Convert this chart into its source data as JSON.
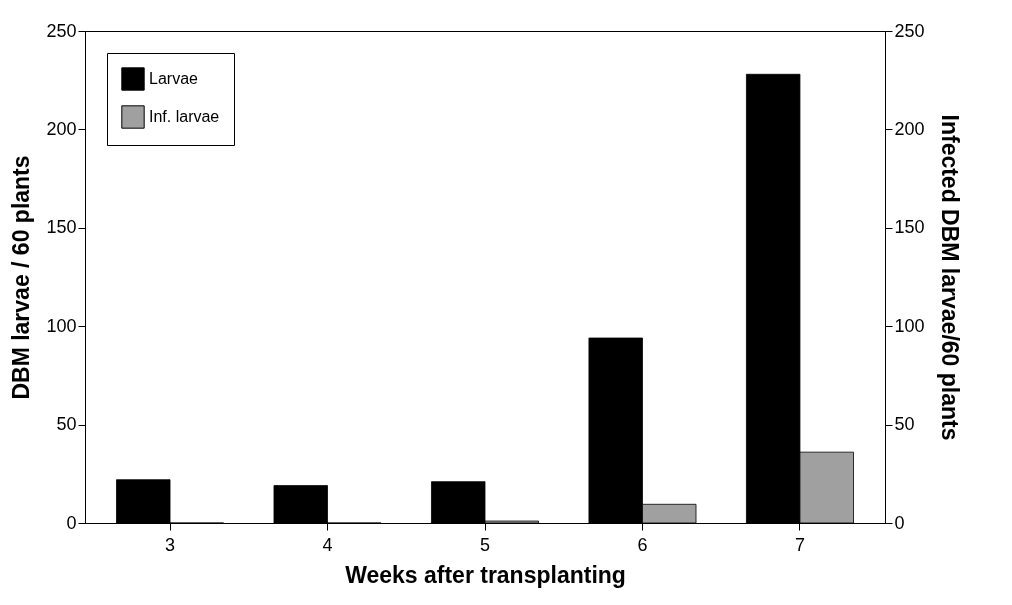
{
  "chart_data": {
    "type": "bar",
    "xlabel": "Weeks after transplanting",
    "ylabel": "DBM larvae / 60 plants",
    "y2label": "Infected DBM larvae/60 plants",
    "categories": [
      "3",
      "4",
      "5",
      "6",
      "7"
    ],
    "series": [
      {
        "name": "Larvae",
        "color": "#000000",
        "values": [
          22,
          19,
          21,
          94,
          228
        ]
      },
      {
        "name": "Inf. larvae",
        "color": "#a0a0a0",
        "axis": "y2",
        "values": [
          0,
          0,
          1,
          9.5,
          36
        ]
      }
    ],
    "ylim": [
      0,
      250
    ],
    "yticks": [
      0,
      50,
      100,
      150,
      200,
      250
    ],
    "y2lim": [
      0,
      250
    ],
    "y2ticks": [
      0,
      50,
      100,
      150,
      200,
      250
    ],
    "grid": false,
    "legend": "top left"
  }
}
